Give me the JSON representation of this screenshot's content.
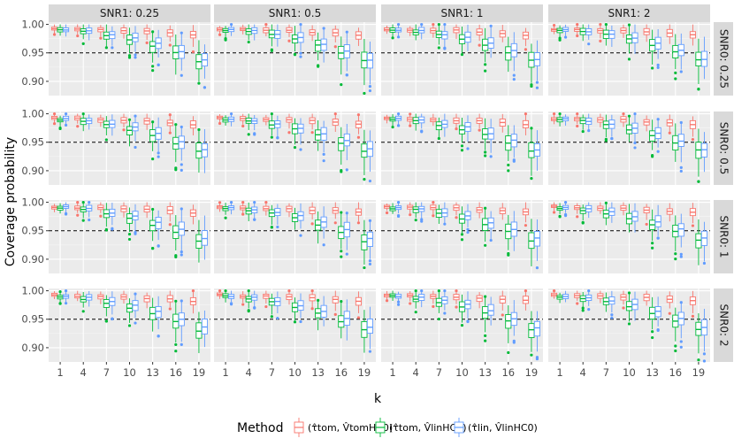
{
  "chart_data": {
    "type": "boxplot",
    "title": "",
    "xlabel": "k",
    "ylabel": "Coverage probability",
    "x": [
      1,
      4,
      7,
      10,
      13,
      16,
      19
    ],
    "ylim": [
      0.875,
      1.004
    ],
    "yticks": [
      0.9,
      0.95,
      1.0
    ],
    "ytick_labels": [
      "0.90",
      "0.95",
      "1.00"
    ],
    "reference_line": 0.95,
    "col_facets": [
      "SNR1: 0.25",
      "SNR1: 0.5",
      "SNR1: 1",
      "SNR1: 2"
    ],
    "row_facets": [
      "SNR0: 0.25",
      "SNR0: 0.5",
      "SNR0: 1",
      "SNR0: 2"
    ],
    "legend": {
      "title": "Method",
      "position": "bottom",
      "entries": [
        {
          "base": "tom",
          "var": "tom",
          "label": "(τ̂tom, V̂tomHC0)",
          "color": "#F8766D"
        },
        {
          "base": "tom",
          "var": "lin",
          "label": "(τ̂tom, V̂linHC0)",
          "color": "#00BA38"
        },
        {
          "base": "lin",
          "var": "lin",
          "label": "(τ̂lin, V̂linHC0)",
          "color": "#619CFF"
        }
      ]
    },
    "series_medians": [
      {
        "name": "tom/tom",
        "values": [
          0.992,
          0.991,
          0.99,
          0.989,
          0.987,
          0.985,
          0.982
        ]
      },
      {
        "name": "tom/lin",
        "values": [
          0.99,
          0.987,
          0.981,
          0.973,
          0.963,
          0.95,
          0.935
        ]
      },
      {
        "name": "lin/lin",
        "values": [
          0.991,
          0.988,
          0.983,
          0.976,
          0.966,
          0.953,
          0.938
        ]
      }
    ]
  }
}
